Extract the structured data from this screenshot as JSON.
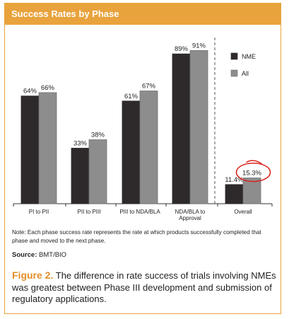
{
  "header": {
    "title": "Success Rates by Phase"
  },
  "chart_data": {
    "type": "bar",
    "categories": [
      "PI to PII",
      "PII to PIII",
      "PIII to NDA/BLA",
      "NDA/BLA to Approval",
      "Overall"
    ],
    "category_lines": [
      [
        "PI to PII"
      ],
      [
        "PII to PIII"
      ],
      [
        "PIII to NDA/BLA"
      ],
      [
        "NDA/BLA to",
        "Approval"
      ],
      [
        "Overall"
      ]
    ],
    "series": [
      {
        "name": "NME",
        "values": [
          64,
          33,
          61,
          89,
          11.4
        ],
        "labels": [
          "64%",
          "33%",
          "61%",
          "89%",
          "11.4%"
        ],
        "color": "#2e2a2b"
      },
      {
        "name": "All",
        "values": [
          66,
          38,
          67,
          91,
          15.3
        ],
        "labels": [
          "66%",
          "38%",
          "67%",
          "91%",
          "15.3%"
        ],
        "color": "#8d8d8d"
      }
    ],
    "ylim": [
      0,
      100
    ],
    "grid": false,
    "legend_placement": "top-right",
    "highlight": {
      "series": "All",
      "category": "Overall",
      "color": "#d9231c"
    },
    "separator": "dashed line before Overall"
  },
  "note": "Note: Each phase success rate represents the rate at which products successfully completed that phase and moved to the next phase.",
  "source": {
    "label": "Source:",
    "text": "BMT/BIO"
  },
  "caption": {
    "figure_label": "Figure 2.",
    "text": "The difference in rate success of trials involving NMEs was greatest between Phase III development and submission of regulatory applications."
  }
}
